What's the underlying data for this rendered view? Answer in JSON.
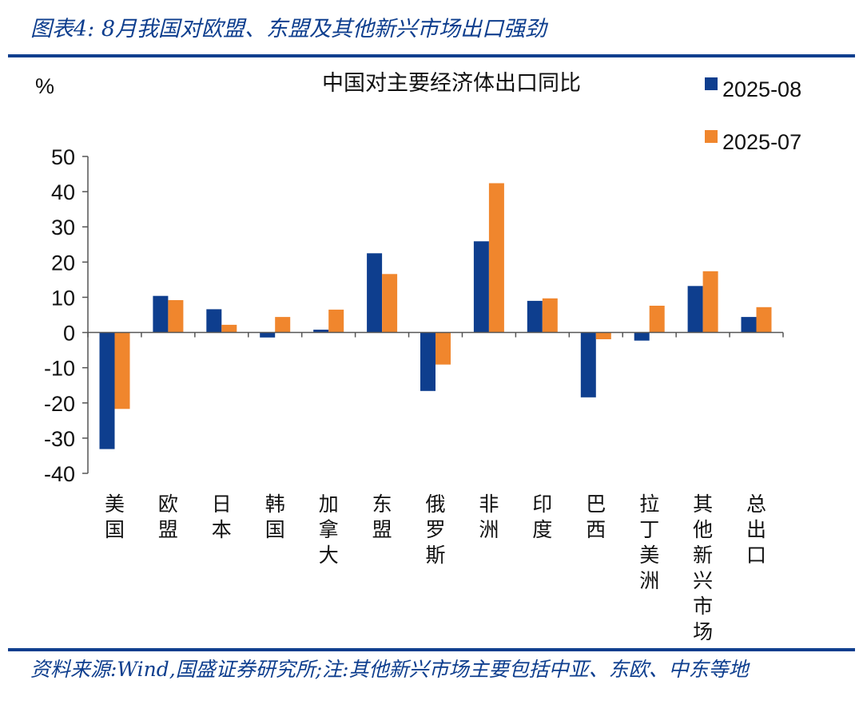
{
  "figure": {
    "title": "图表4:  8月我国对欧盟、东盟及其他新兴市场出口强劲",
    "source": "资料来源:Wind,国盛证券研究所;注:其他新兴市场主要包括中亚、东欧、中东等地"
  },
  "colors": {
    "s1": "#0e3e8e",
    "s2": "#f0862d",
    "accent": "#0e3e8e"
  },
  "chart_data": {
    "type": "bar",
    "title": "中国对主要经济体出口同比",
    "ylabel": "%",
    "ylim": [
      -40,
      50
    ],
    "yticks": [
      50,
      40,
      30,
      20,
      10,
      0,
      -10,
      -20,
      -30,
      -40
    ],
    "ytick_labels": [
      "50",
      "40",
      "30",
      "20",
      "10",
      "0",
      "-10",
      "-20",
      "-30",
      "-40"
    ],
    "legend_position": "top-right",
    "grid": false,
    "categories": [
      "美国",
      "欧盟",
      "日本",
      "韩国",
      "加拿大",
      "东盟",
      "俄罗斯",
      "非洲",
      "印度",
      "巴西",
      "拉丁美洲",
      "其他新兴市场",
      "总出口"
    ],
    "series": [
      {
        "name": "2025-08",
        "values": [
          -33.1,
          10.4,
          6.6,
          -1.4,
          0.8,
          22.5,
          -16.6,
          25.9,
          9.0,
          -18.4,
          -2.3,
          13.2,
          4.4
        ]
      },
      {
        "name": "2025-07",
        "values": [
          -21.7,
          9.2,
          2.2,
          4.4,
          6.5,
          16.6,
          -9.1,
          42.4,
          9.7,
          -1.9,
          7.6,
          17.4,
          7.2
        ]
      }
    ]
  }
}
